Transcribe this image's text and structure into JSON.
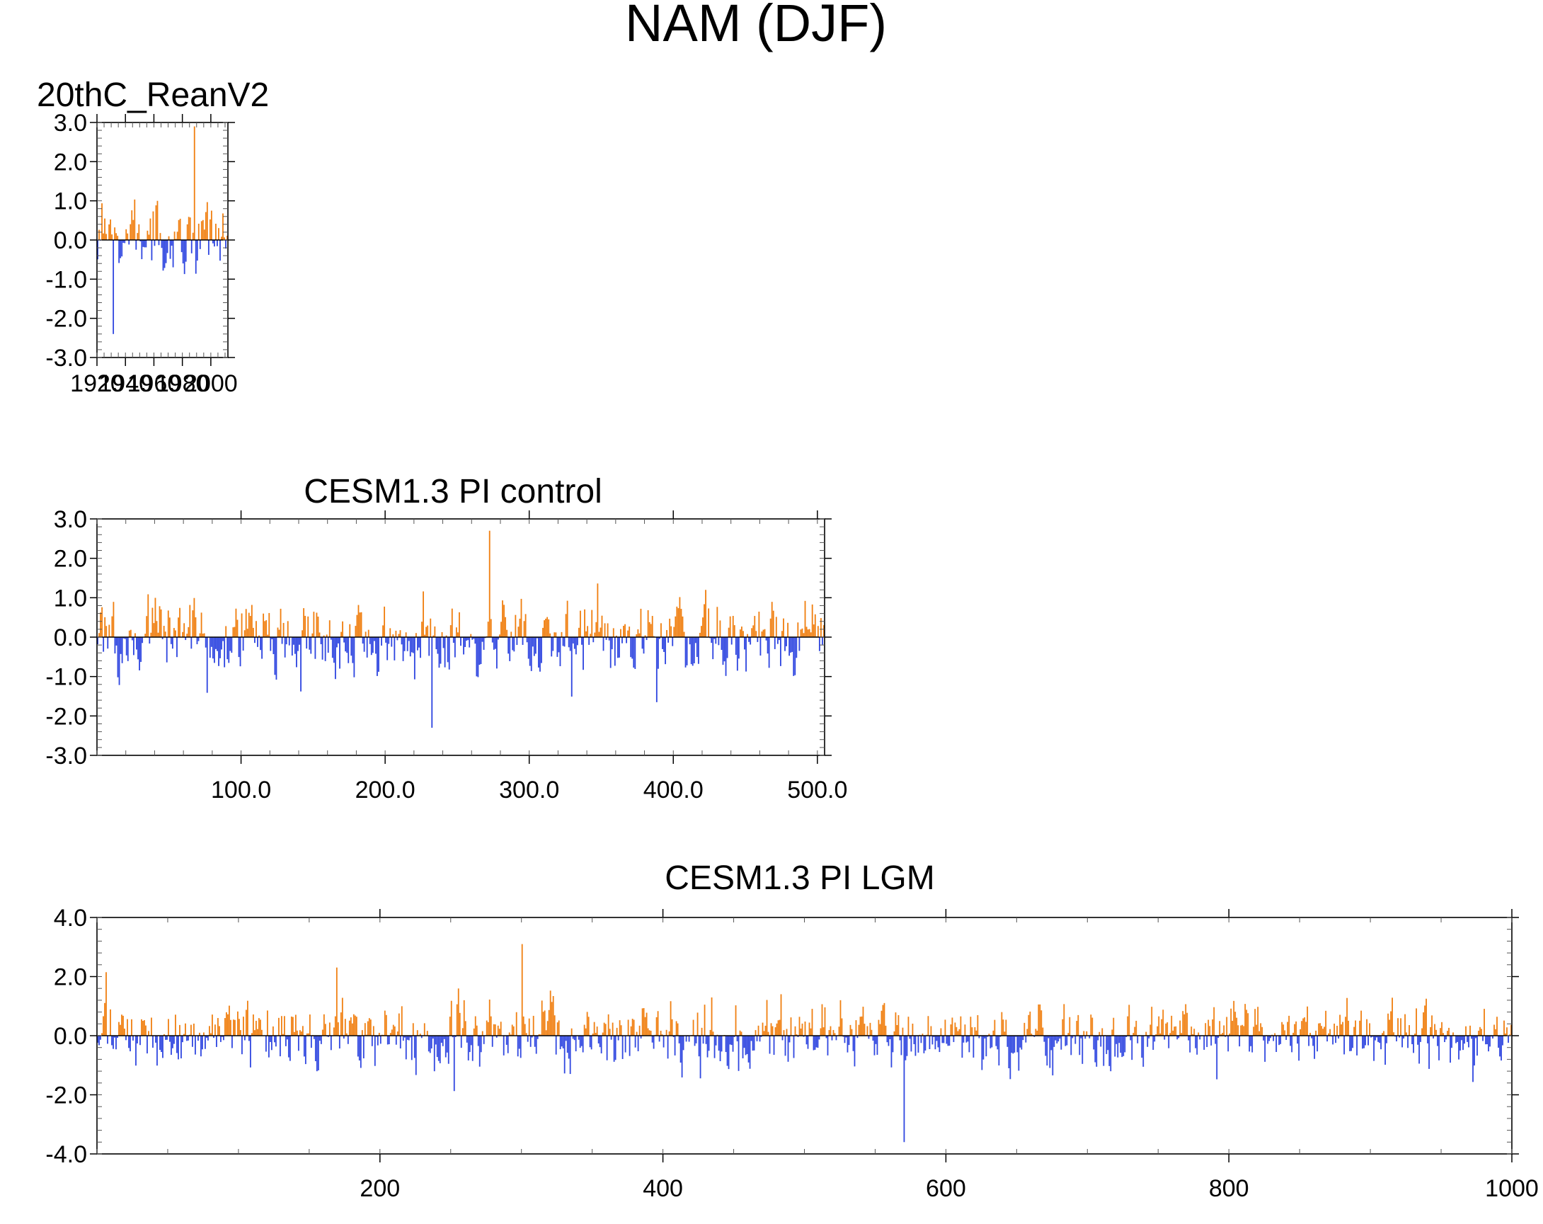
{
  "figure": {
    "title": "NAM (DJF)",
    "colors": {
      "positive": "#f07f10",
      "negative": "#2f46e0",
      "axis": "#000000"
    }
  },
  "chart_data": [
    {
      "type": "bar",
      "title": "20thC_ReanV2",
      "xlabel": "",
      "ylabel": "",
      "xlim": [
        1920,
        2012
      ],
      "ylim": [
        -3.0,
        3.0
      ],
      "x_tick_values": [
        1920,
        1940,
        1960,
        1980,
        2000
      ],
      "x_tick_labels": [
        "1920",
        "1940",
        "1960",
        "1980",
        "2000"
      ],
      "y_tick_values": [
        -3,
        -2,
        -1,
        0,
        1,
        2,
        3
      ],
      "y_tick_labels": [
        "-3.0",
        "-2.0",
        "-1.0",
        "0.0",
        "1.0",
        "2.0",
        "3.0"
      ],
      "grid": false,
      "n_points": 92,
      "values_note": "monthly DJF NAM index, peaks approx +2.9 near 1988, troughs approx -2.4 near 1928",
      "key_extremes": {
        "max": 2.9,
        "min": -2.4
      }
    },
    {
      "type": "bar",
      "title": "CESM1.3 PI control",
      "xlabel": "",
      "ylabel": "",
      "xlim": [
        0,
        505
      ],
      "ylim": [
        -3.0,
        3.0
      ],
      "x_tick_values": [
        100,
        200,
        300,
        400,
        500
      ],
      "x_tick_labels": [
        "100.0",
        "200.0",
        "300.0",
        "400.0",
        "500.0"
      ],
      "y_tick_values": [
        -3,
        -2,
        -1,
        0,
        1,
        2,
        3
      ],
      "y_tick_labels": [
        "-3.0",
        "-2.0",
        "-1.0",
        "0.0",
        "1.0",
        "2.0",
        "3.0"
      ],
      "grid": false,
      "n_points": 505,
      "key_extremes": {
        "max": 2.7,
        "min": -2.3
      }
    },
    {
      "type": "bar",
      "title": "CESM1.3 PI LGM",
      "xlabel": "",
      "ylabel": "",
      "xlim": [
        0,
        1000
      ],
      "ylim": [
        -4.0,
        4.0
      ],
      "x_tick_values": [
        200,
        400,
        600,
        800,
        1000
      ],
      "x_tick_labels": [
        "200",
        "400",
        "600",
        "800",
        "1000"
      ],
      "y_tick_values": [
        -4,
        -2,
        0,
        2,
        4
      ],
      "y_tick_labels": [
        "-4.0",
        "-2.0",
        "0.0",
        "2.0",
        "4.0"
      ],
      "grid": false,
      "n_points": 1000,
      "key_extremes": {
        "max": 3.1,
        "min": -3.6
      }
    }
  ]
}
